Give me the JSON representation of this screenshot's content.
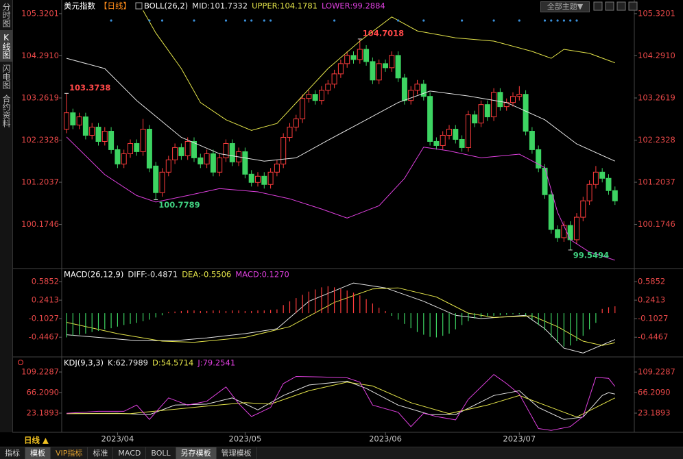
{
  "ui": {
    "sidebar": [
      "分时图",
      "K线图",
      "闪电图",
      "合约资料"
    ],
    "theme_button": "全部主题▼",
    "tabs": [
      "指标",
      "模板",
      "VIP指标",
      "标准",
      "MACD",
      "BOLL",
      "另存模板",
      "管理模板"
    ],
    "period_button": "日线 ▲"
  },
  "time_axis": {
    "ticks": [
      {
        "value": 8,
        "label": "2023/04"
      },
      {
        "value": 28,
        "label": "2023/05"
      },
      {
        "value": 50,
        "label": "2023/06"
      },
      {
        "value": 71,
        "label": "2023/07"
      }
    ]
  },
  "chart_data": [
    {
      "type": "candlestick",
      "title": "美元指数",
      "subtitle": "【日线】",
      "indicator": "BOLL(26,2)",
      "ylim": [
        99.13,
        105.52
      ],
      "yticks": [
        105.3201,
        {
          "value": 104.291,
          "label": "104.2910"
        },
        103.2619,
        102.2328,
        101.2037,
        100.1746
      ],
      "up_color": "#ff3c3c",
      "down_color": "#3dd462",
      "open": [
        102.5,
        102.9,
        102.6,
        102.8,
        102.35,
        102.55,
        102.2,
        102.45,
        102.0,
        101.65,
        101.9,
        102.15,
        101.95,
        102.5,
        101.6,
        100.95,
        101.45,
        101.75,
        102.05,
        101.85,
        102.2,
        101.8,
        101.65,
        101.9,
        101.45,
        101.8,
        102.15,
        101.7,
        101.95,
        101.4,
        101.2,
        101.35,
        101.15,
        101.45,
        101.65,
        102.3,
        102.55,
        102.75,
        103.25,
        103.35,
        103.2,
        103.45,
        103.6,
        103.85,
        104.1,
        104.3,
        104.2,
        104.45,
        104.15,
        103.7,
        104.1,
        104.0,
        104.3,
        103.75,
        103.2,
        103.45,
        103.6,
        103.3,
        102.2,
        102.1,
        102.35,
        102.5,
        102.25,
        102.05,
        102.85,
        102.65,
        103.1,
        102.8,
        103.4,
        103.05,
        103.15,
        103.3,
        103.35,
        102.45,
        102.0,
        101.55,
        100.9,
        100.05,
        99.85,
        100.15,
        99.8,
        100.35,
        100.75,
        101.15,
        101.45,
        101.3,
        101.0
      ],
      "high": [
        103.3738,
        103.0,
        102.9,
        102.9,
        102.65,
        102.65,
        102.55,
        102.55,
        102.1,
        102.0,
        102.25,
        102.25,
        102.75,
        102.6,
        101.7,
        101.55,
        101.85,
        102.15,
        102.15,
        102.3,
        102.3,
        101.9,
        102.0,
        102.0,
        101.9,
        102.25,
        102.25,
        102.05,
        102.05,
        101.5,
        101.45,
        101.45,
        101.55,
        101.75,
        102.4,
        102.65,
        102.85,
        103.35,
        103.45,
        103.45,
        103.55,
        103.7,
        103.95,
        104.2,
        104.4,
        104.4,
        104.7018,
        104.55,
        104.25,
        104.2,
        104.2,
        104.4,
        104.4,
        103.85,
        103.55,
        103.7,
        103.7,
        103.4,
        102.3,
        102.45,
        102.6,
        102.6,
        102.35,
        102.95,
        102.95,
        103.2,
        103.2,
        103.5,
        103.5,
        103.25,
        103.4,
        103.55,
        103.45,
        102.55,
        102.1,
        101.65,
        101.0,
        100.15,
        100.25,
        100.25,
        100.45,
        100.85,
        101.25,
        101.6,
        101.55,
        101.4,
        101.1
      ],
      "low": [
        102.4,
        102.5,
        102.5,
        102.25,
        102.25,
        102.1,
        102.1,
        101.9,
        101.55,
        101.55,
        101.8,
        101.85,
        101.85,
        101.45,
        100.7789,
        100.85,
        101.35,
        101.65,
        101.75,
        101.75,
        101.7,
        101.55,
        101.55,
        101.35,
        101.35,
        101.7,
        101.6,
        101.6,
        101.3,
        101.1,
        101.1,
        101.05,
        101.05,
        101.35,
        101.55,
        102.2,
        102.45,
        102.65,
        103.15,
        103.1,
        103.1,
        103.35,
        103.5,
        103.75,
        104.0,
        104.1,
        104.1,
        104.05,
        103.6,
        103.6,
        103.9,
        103.9,
        103.65,
        103.1,
        103.1,
        103.35,
        103.2,
        102.1,
        102.0,
        102.0,
        102.25,
        102.15,
        101.95,
        101.95,
        102.55,
        102.55,
        102.7,
        102.7,
        102.95,
        102.95,
        103.05,
        103.2,
        102.35,
        101.9,
        101.45,
        100.8,
        99.95,
        99.75,
        99.75,
        99.5494,
        99.7,
        100.25,
        100.65,
        101.05,
        101.2,
        100.9,
        100.65
      ],
      "close": [
        102.9,
        102.6,
        102.8,
        102.35,
        102.55,
        102.2,
        102.45,
        102.0,
        101.65,
        101.9,
        102.15,
        101.95,
        102.5,
        101.55,
        100.95,
        101.45,
        101.75,
        102.05,
        101.85,
        102.2,
        101.8,
        101.65,
        101.9,
        101.45,
        101.8,
        102.15,
        101.7,
        101.95,
        101.4,
        101.2,
        101.35,
        101.15,
        101.45,
        101.65,
        102.3,
        102.55,
        102.75,
        103.25,
        103.35,
        103.2,
        103.45,
        103.6,
        103.85,
        104.1,
        104.3,
        104.2,
        104.45,
        104.15,
        103.7,
        104.1,
        104.0,
        104.3,
        103.75,
        103.2,
        103.45,
        103.6,
        103.3,
        102.2,
        102.1,
        102.35,
        102.5,
        102.25,
        102.05,
        102.85,
        102.65,
        103.1,
        102.8,
        103.4,
        103.05,
        103.15,
        103.3,
        103.35,
        102.45,
        102.0,
        101.55,
        100.9,
        100.05,
        99.85,
        100.15,
        99.8,
        100.35,
        100.75,
        101.15,
        101.45,
        101.3,
        101.0,
        100.75
      ],
      "series": [
        {
          "name": "MID:101.7332",
          "color": "#e6e6e6",
          "x": [
            0,
            6,
            11,
            18,
            24,
            31,
            36,
            41,
            47,
            52,
            57,
            63,
            69,
            75,
            80,
            86
          ],
          "values": [
            104.23,
            103.98,
            103.2,
            102.3,
            101.9,
            101.72,
            101.8,
            102.23,
            102.73,
            103.15,
            103.43,
            103.31,
            103.15,
            102.73,
            102.14,
            101.72
          ]
        },
        {
          "name": "UPPER:104.1781",
          "color": "#e6e64a",
          "x": [
            12,
            14,
            18,
            21,
            25,
            29,
            33,
            37,
            41,
            46,
            51,
            55,
            61,
            67,
            73,
            76,
            78,
            82,
            86
          ],
          "values": [
            105.4,
            104.85,
            103.98,
            103.15,
            102.73,
            102.47,
            102.64,
            103.31,
            103.98,
            104.65,
            105.24,
            104.9,
            104.73,
            104.65,
            104.4,
            104.23,
            104.45,
            104.35,
            104.12
          ]
        },
        {
          "name": "LOWER:99.2884",
          "color": "#e040e0",
          "x": [
            0,
            6,
            11,
            14,
            19,
            24,
            30,
            35,
            40,
            44,
            49,
            53,
            56,
            60,
            65,
            71,
            75,
            77,
            79,
            82,
            86
          ],
          "values": [
            102.31,
            101.39,
            100.88,
            100.72,
            100.88,
            101.05,
            100.97,
            100.8,
            100.55,
            100.33,
            100.63,
            101.3,
            102.06,
            101.97,
            101.8,
            101.89,
            101.56,
            100.47,
            99.8,
            99.5,
            99.3
          ]
        }
      ],
      "annotations": [
        {
          "candle": 0,
          "value": 103.3738,
          "color": "#ff4848"
        },
        {
          "candle": 14,
          "value": 100.7789,
          "color": "#40d080"
        },
        {
          "candle": 46,
          "value": 104.7018,
          "color": "#ff4848"
        },
        {
          "candle": 79,
          "value": 99.5494,
          "color": "#40d080"
        }
      ],
      "signals": [
        7,
        13,
        15,
        20,
        25,
        28,
        29,
        31,
        32,
        42,
        52,
        56,
        62,
        67,
        71,
        75,
        76,
        77,
        78,
        79,
        80
      ],
      "signal_color": "#3a8fd8"
    },
    {
      "type": "macd",
      "title": "MACD(26,12,9)",
      "ylim": [
        -0.8,
        0.79
      ],
      "yticks": [
        0.5852,
        0.2413,
        -0.1027,
        -0.4467
      ],
      "series": [
        {
          "name": "DIFF:-0.4871",
          "color": "#e6e6e6",
          "x": [
            0,
            6,
            11,
            17,
            22,
            28,
            33,
            38,
            45,
            50,
            56,
            61,
            65,
            72,
            75,
            78,
            81,
            84,
            86
          ],
          "values": [
            -0.4,
            -0.46,
            -0.51,
            -0.51,
            -0.46,
            -0.38,
            -0.29,
            0.22,
            0.56,
            0.47,
            0.22,
            -0.04,
            -0.1,
            -0.04,
            -0.29,
            -0.65,
            -0.74,
            -0.59,
            -0.49
          ]
        },
        {
          "name": "DEA:-0.5506",
          "color": "#e6e64a",
          "x": [
            0,
            8,
            15,
            20,
            28,
            35,
            42,
            48,
            52,
            58,
            63,
            67,
            73,
            77,
            81,
            84,
            86
          ],
          "values": [
            -0.17,
            -0.38,
            -0.52,
            -0.54,
            -0.45,
            -0.25,
            0.2,
            0.45,
            0.47,
            0.3,
            0.0,
            -0.08,
            -0.05,
            -0.25,
            -0.52,
            -0.6,
            -0.55
          ]
        },
        {
          "name": "MACD:0.1270",
          "color": "#e040e0",
          "bar": true,
          "up_color": "#ff3c3c",
          "down_color": "#3dd462",
          "values": [
            -0.45,
            -0.42,
            -0.4,
            -0.38,
            -0.35,
            -0.33,
            -0.3,
            -0.28,
            -0.25,
            -0.22,
            -0.2,
            -0.18,
            -0.15,
            -0.12,
            -0.08,
            -0.04,
            0.02,
            0.03,
            0.04,
            0.05,
            0.05,
            0.04,
            0.04,
            0.05,
            0.05,
            0.04,
            0.05,
            0.05,
            0.04,
            0.04,
            0.05,
            0.05,
            0.06,
            0.07,
            0.15,
            0.22,
            0.28,
            0.34,
            0.4,
            0.44,
            0.48,
            0.5,
            0.48,
            0.45,
            0.42,
            0.38,
            0.33,
            0.26,
            0.18,
            0.1,
            0.04,
            -0.05,
            -0.12,
            -0.2,
            -0.28,
            -0.35,
            -0.4,
            -0.44,
            -0.45,
            -0.42,
            -0.38,
            -0.3,
            -0.22,
            -0.15,
            -0.1,
            -0.08,
            -0.06,
            -0.05,
            -0.04,
            -0.03,
            -0.02,
            -0.02,
            -0.04,
            -0.12,
            -0.22,
            -0.32,
            -0.45,
            -0.55,
            -0.62,
            -0.6,
            -0.52,
            -0.42,
            -0.3,
            -0.18,
            0.08,
            0.11,
            0.127
          ]
        }
      ]
    },
    {
      "type": "kdj",
      "title": "KDJ(9,3,3)",
      "ylim": [
        -15.5,
        132.2
      ],
      "yticks": [
        109.2287,
        {
          "value": 66.209,
          "label": "66.2090"
        },
        23.1893
      ],
      "series": [
        {
          "name": "K:62.7989",
          "color": "#e6e6e6",
          "x": [
            0,
            8,
            13,
            17,
            22,
            26,
            30,
            34,
            38,
            44,
            47,
            52,
            57,
            61,
            67,
            71,
            74,
            78,
            81,
            84,
            85,
            86
          ],
          "values": [
            22,
            23,
            20,
            40,
            42,
            55,
            30,
            60,
            82,
            90,
            75,
            40,
            20,
            20,
            60,
            70,
            35,
            10,
            15,
            60,
            66,
            63
          ]
        },
        {
          "name": "D:54.5714",
          "color": "#e6e64a",
          "x": [
            0,
            10,
            16,
            22,
            28,
            32,
            38,
            44,
            48,
            54,
            60,
            66,
            71,
            75,
            80,
            83,
            86
          ],
          "values": [
            22,
            22,
            30,
            38,
            45,
            42,
            70,
            88,
            80,
            45,
            22,
            40,
            60,
            40,
            15,
            35,
            55
          ]
        },
        {
          "name": "J:79.2541",
          "color": "#e040e0",
          "x": [
            0,
            5,
            9,
            11,
            13,
            16,
            19,
            22,
            25,
            27,
            29,
            32,
            34,
            36,
            40,
            44,
            46,
            48,
            52,
            54,
            56,
            58,
            61,
            63,
            67,
            69,
            71,
            74,
            76,
            79,
            81,
            83,
            85,
            86
          ],
          "values": [
            23,
            27,
            27,
            40,
            10,
            55,
            40,
            48,
            78,
            43,
            16,
            35,
            85,
            100,
            99,
            97,
            88,
            40,
            25,
            -5,
            23,
            16,
            9,
            52,
            104,
            85,
            63,
            -9,
            -13,
            -5,
            16,
            98,
            96,
            79
          ]
        }
      ]
    }
  ]
}
